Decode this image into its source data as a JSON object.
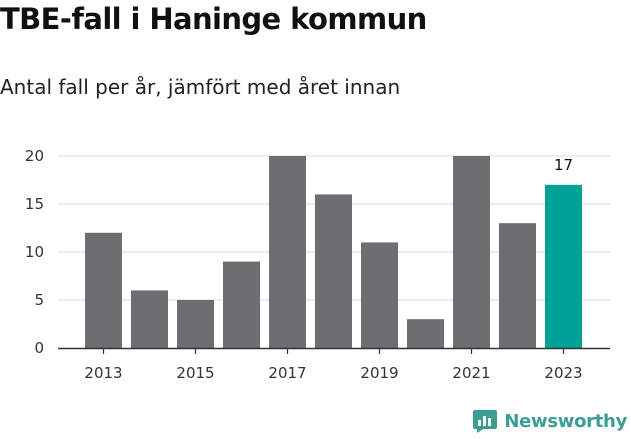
{
  "title": "TBE-fall i Haninge kommun",
  "subtitle": "Antal fall per år, jämfört med året innan",
  "brand": {
    "name": "Newsworthy",
    "icon": "newsworthy-logo-icon"
  },
  "colors": {
    "bar": "#6e6d72",
    "highlight": "#00a196",
    "grid": "#d9d9d9",
    "axis": "#333333",
    "brand": "#3a9e92"
  },
  "chart_data": {
    "type": "bar",
    "title": "TBE-fall i Haninge kommun",
    "subtitle": "Antal fall per år, jämfört med året innan",
    "xlabel": "",
    "ylabel": "",
    "categories": [
      "2013",
      "2014",
      "2015",
      "2016",
      "2017",
      "2018",
      "2019",
      "2020",
      "2021",
      "2022",
      "2023"
    ],
    "values": [
      12,
      6,
      5,
      9,
      20,
      16,
      11,
      3,
      20,
      13,
      17
    ],
    "highlight_index": 10,
    "data_labels": [
      {
        "index": 10,
        "text": "17"
      }
    ],
    "xticks": [
      "2013",
      "2015",
      "2017",
      "2019",
      "2021",
      "2023"
    ],
    "yticks": [
      0,
      5,
      10,
      15,
      20
    ],
    "ylim": [
      0,
      20
    ],
    "grid": true,
    "legend": "none"
  }
}
